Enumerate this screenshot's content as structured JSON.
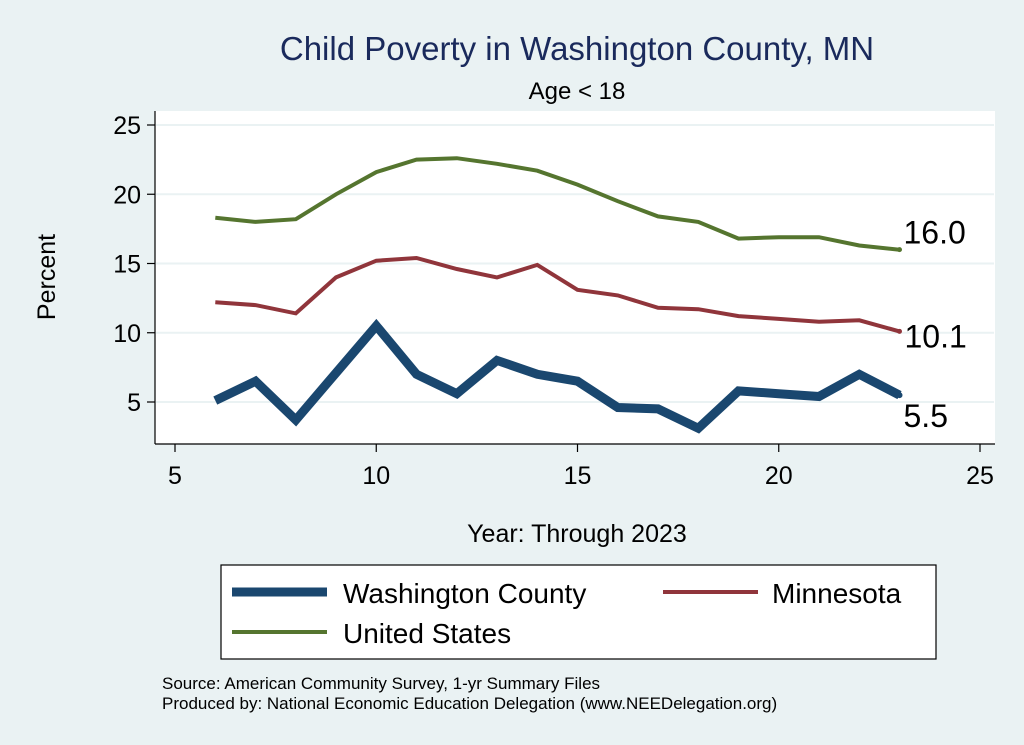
{
  "chart_data": {
    "type": "line",
    "title": "Child Poverty in Washington County, MN",
    "subtitle": "Age < 18",
    "xlabel": "Year: Through 2023",
    "ylabel": "Percent",
    "xlim": [
      5,
      25
    ],
    "ylim": [
      2,
      25.5
    ],
    "xticks": [
      5,
      10,
      15,
      20,
      25
    ],
    "yticks": [
      5,
      10,
      15,
      20,
      25
    ],
    "grid": "horizontal",
    "legend_position": "bottom",
    "series": [
      {
        "name": "Washington County",
        "color": "#1a476f",
        "x": [
          6,
          7,
          8,
          9,
          10,
          11,
          12,
          13,
          14,
          15,
          16,
          17,
          18,
          19,
          20,
          21,
          22,
          23
        ],
        "y": [
          5.1,
          6.5,
          3.7,
          7.1,
          10.5,
          7.0,
          5.6,
          8.0,
          7.0,
          6.5,
          4.6,
          4.5,
          3.1,
          5.8,
          5.6,
          5.4,
          7.0,
          5.5
        ],
        "end_label": "5.5"
      },
      {
        "name": "Minnesota",
        "color": "#90353b",
        "x": [
          6,
          7,
          8,
          9,
          10,
          11,
          12,
          13,
          14,
          15,
          16,
          17,
          18,
          19,
          20,
          21,
          22,
          23
        ],
        "y": [
          12.2,
          12.0,
          11.4,
          14.0,
          15.2,
          15.4,
          14.6,
          14.0,
          14.9,
          13.1,
          12.7,
          11.8,
          11.7,
          11.2,
          11.0,
          10.8,
          10.9,
          10.1
        ],
        "end_label": "10.1"
      },
      {
        "name": "United States",
        "color": "#55752f",
        "x": [
          6,
          7,
          8,
          9,
          10,
          11,
          12,
          13,
          14,
          15,
          16,
          17,
          18,
          19,
          20,
          21,
          22,
          23
        ],
        "y": [
          18.3,
          18.0,
          18.2,
          20.0,
          21.6,
          22.5,
          22.6,
          22.2,
          21.7,
          20.7,
          19.5,
          18.4,
          18.0,
          16.8,
          16.9,
          16.9,
          16.3,
          16.0
        ],
        "end_label": "16.0"
      }
    ],
    "source_lines": [
      "Source: American Community Survey, 1-yr Summary Files",
      "Produced by: National Economic Education Delegation (www.NEEDelegation.org)"
    ]
  }
}
